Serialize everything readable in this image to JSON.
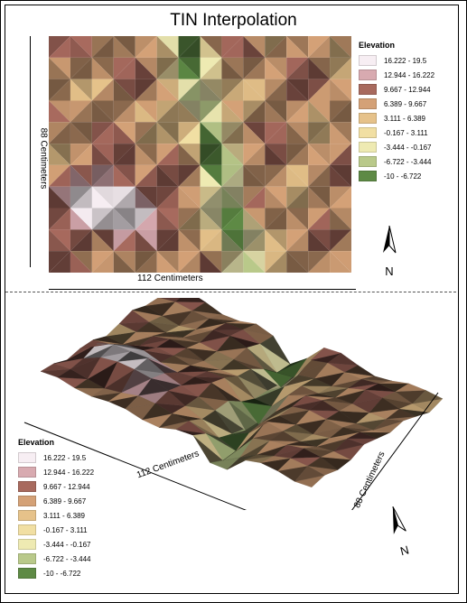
{
  "title": "TIN Interpolation",
  "map2d": {
    "x_label": "112 Centimeters",
    "y_label": "88 Centimeters",
    "north_label": "N"
  },
  "map3d": {
    "x_label": "112 Centimeters",
    "y_label": "88 Centimeters",
    "north_label": "N"
  },
  "legend": {
    "title": "Elevation",
    "classes": [
      {
        "label": "16.222 - 19.5",
        "color": "#f7eef3"
      },
      {
        "label": "12.944 - 16.222",
        "color": "#d8aab0"
      },
      {
        "label": "9.667 - 12.944",
        "color": "#a86a5e"
      },
      {
        "label": "6.389 - 9.667",
        "color": "#d4a177"
      },
      {
        "label": "3.111 - 6.389",
        "color": "#e6c28a"
      },
      {
        "label": "-0.167 - 3.111",
        "color": "#f1dfa3"
      },
      {
        "label": "-3.444 - -0.167",
        "color": "#eeeab2"
      },
      {
        "label": "-6.722 - -3.444",
        "color": "#b9c98a"
      },
      {
        "label": "-10 - -6.722",
        "color": "#5e8a45"
      }
    ]
  }
}
